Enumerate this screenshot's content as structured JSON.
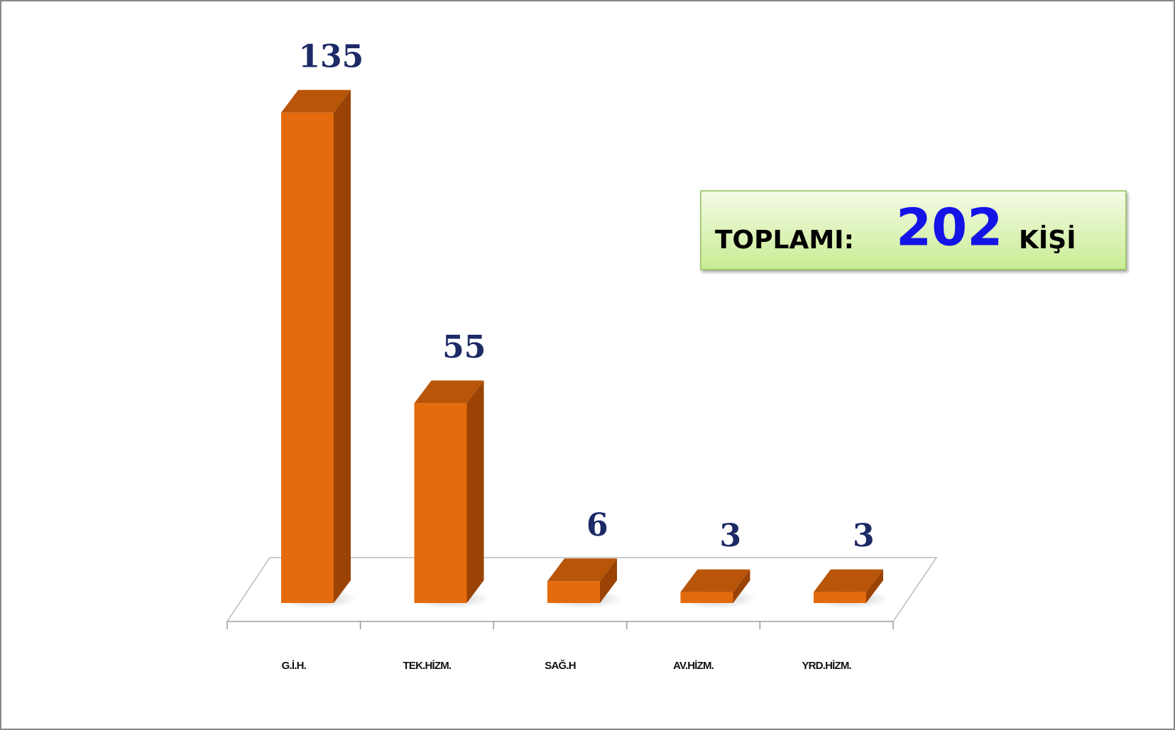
{
  "chart_data": {
    "type": "bar3d",
    "categories": [
      "G.İ.H.",
      "TEK.HİZM.",
      "SAĞ.H",
      "AV.HİZM.",
      "YRD.HİZM."
    ],
    "values": [
      135,
      55,
      6,
      3,
      3
    ],
    "color": "#e46b0c",
    "annotation": {
      "label": "TOPLAMI:",
      "value": 202,
      "unit": "KİŞİ"
    }
  }
}
